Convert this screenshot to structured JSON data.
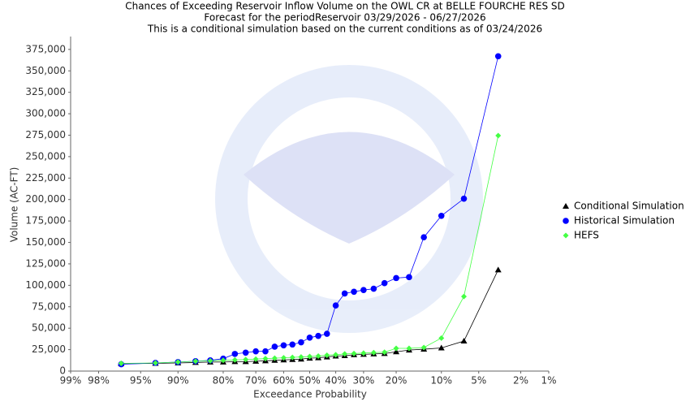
{
  "chart_data": {
    "type": "line",
    "title": "Chances of Exceeding Reservoir Inflow Volume on the OWL CR at BELLE FOURCHE RES SD",
    "subtitle": [
      "Forecast for the periodReservoir 03/29/2026 - 06/27/2026",
      "This is a conditional simulation based on the current conditions as of 03/24/2026"
    ],
    "x_label": "Exceedance Probability",
    "y_label": "Volume (AC-FT)",
    "xscale": "probit",
    "xlim": [
      99,
      1
    ],
    "xticks": [
      {
        "value": 99,
        "label": "99%"
      },
      {
        "value": 98,
        "label": "98%"
      },
      {
        "value": 95,
        "label": "95%"
      },
      {
        "value": 90,
        "label": "90%"
      },
      {
        "value": 80,
        "label": "80%"
      },
      {
        "value": 70,
        "label": "70%"
      },
      {
        "value": 60,
        "label": "60%"
      },
      {
        "value": 50,
        "label": "50%"
      },
      {
        "value": 40,
        "label": "40%"
      },
      {
        "value": 30,
        "label": "30%"
      },
      {
        "value": 20,
        "label": "20%"
      },
      {
        "value": 10,
        "label": "10%"
      },
      {
        "value": 5,
        "label": "5%"
      },
      {
        "value": 2,
        "label": "2%"
      },
      {
        "value": 1,
        "label": "1%"
      }
    ],
    "ylim": [
      0,
      390000
    ],
    "yticks": [
      0,
      {
        "value": 25000,
        "label": "25,000"
      },
      {
        "value": 50000,
        "label": "50,000"
      },
      {
        "value": 75000,
        "label": "75,000"
      },
      {
        "value": 100000,
        "label": "100,000"
      },
      {
        "value": 125000,
        "label": "125,000"
      },
      {
        "value": 150000,
        "label": "150,000"
      },
      {
        "value": 175000,
        "label": "175,000"
      },
      {
        "value": 200000,
        "label": "200,000"
      },
      {
        "value": 225000,
        "label": "225,000"
      },
      {
        "value": 250000,
        "label": "250,000"
      },
      {
        "value": 275000,
        "label": "275,000"
      },
      {
        "value": 300000,
        "label": "300,000"
      },
      {
        "value": 325000,
        "label": "325,000"
      },
      {
        "value": 350000,
        "label": "350,000"
      },
      {
        "value": 375000,
        "label": "375,000"
      }
    ],
    "grid": false,
    "legend": "right",
    "x": [
      96.67,
      93.33,
      90,
      86.67,
      83.33,
      80,
      76.67,
      73.33,
      70,
      66.67,
      63.33,
      60,
      56.67,
      53.33,
      50,
      46.67,
      43.33,
      40,
      36.67,
      33.33,
      30,
      26.67,
      23.33,
      20,
      16.67,
      13.33,
      10,
      6.67,
      3.33
    ],
    "series": [
      {
        "name": "Conditional Simulation",
        "color": "#000000",
        "marker": "triangle",
        "values": [
          8500,
          9000,
          9500,
          10000,
          10500,
          10500,
          11000,
          11000,
          11500,
          12000,
          12500,
          13000,
          13500,
          14000,
          15000,
          15500,
          16500,
          17500,
          18000,
          19000,
          19500,
          20000,
          20500,
          22500,
          24500,
          25500,
          27000,
          35000,
          118000
        ]
      },
      {
        "name": "Historical Simulation",
        "color": "#0000ff",
        "marker": "circle",
        "values": [
          8000,
          9500,
          10500,
          11500,
          12500,
          14500,
          20000,
          21500,
          23000,
          23000,
          28500,
          30000,
          31000,
          33500,
          39000,
          41000,
          43500,
          76500,
          90500,
          92500,
          94500,
          96000,
          102500,
          108500,
          109500,
          156000,
          181000,
          201000,
          367000
        ]
      },
      {
        "name": "HEFS",
        "color": "#44ff44",
        "marker": "diamond",
        "values": [
          9000,
          9500,
          10500,
          11500,
          12000,
          12500,
          13000,
          13500,
          14000,
          14500,
          15000,
          15500,
          16000,
          16500,
          17000,
          17500,
          18500,
          19000,
          20000,
          20500,
          21000,
          21500,
          22000,
          26500,
          26500,
          27500,
          38500,
          87000,
          274500
        ]
      }
    ]
  }
}
